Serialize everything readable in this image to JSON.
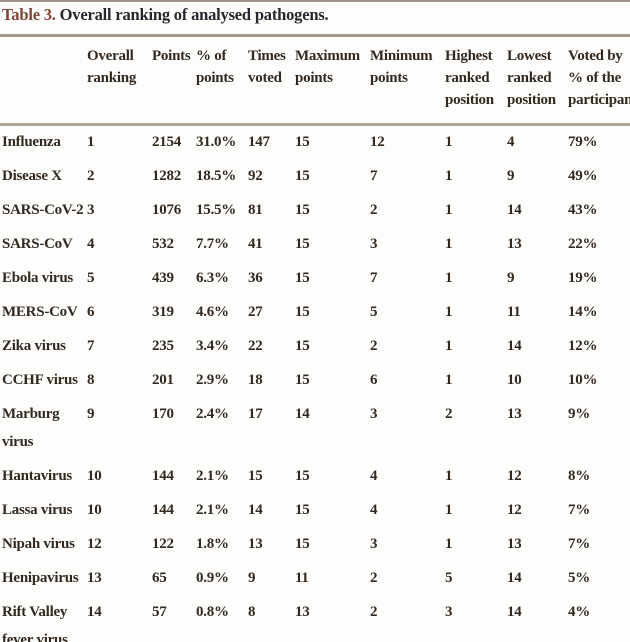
{
  "caption": {
    "label": "Table 3.",
    "text": " Overall ranking of analysed pathogens."
  },
  "table": {
    "columns": [
      {
        "key": "pathogen",
        "header": []
      },
      {
        "key": "overall_ranking",
        "header": [
          "Overall",
          "ranking"
        ]
      },
      {
        "key": "points",
        "header": [
          "Points"
        ]
      },
      {
        "key": "pct_of_points",
        "header": [
          "% of",
          "points"
        ]
      },
      {
        "key": "times_voted",
        "header": [
          "Times",
          "voted"
        ]
      },
      {
        "key": "maximum_points",
        "header": [
          "Maximum",
          "points"
        ]
      },
      {
        "key": "minimum_points",
        "header": [
          "Minimum",
          "points"
        ]
      },
      {
        "key": "highest_ranked_position",
        "header": [
          "Highest",
          "ranked",
          "position"
        ]
      },
      {
        "key": "lowest_ranked_position",
        "header": [
          "Lowest",
          "ranked",
          "position"
        ]
      },
      {
        "key": "voted_by_pct",
        "header": [
          "Voted by",
          "% of the",
          "participants"
        ]
      }
    ],
    "rows": [
      {
        "pathogen": [
          "Influenza"
        ],
        "values": [
          "1",
          "2154",
          "31.0%",
          "147",
          "15",
          "12",
          "1",
          "4",
          "79%"
        ]
      },
      {
        "pathogen": [
          "Disease X"
        ],
        "values": [
          "2",
          "1282",
          "18.5%",
          "92",
          "15",
          "7",
          "1",
          "9",
          "49%"
        ]
      },
      {
        "pathogen": [
          "SARS-CoV-2"
        ],
        "values": [
          "3",
          "1076",
          "15.5%",
          "81",
          "15",
          "2",
          "1",
          "14",
          "43%"
        ]
      },
      {
        "pathogen": [
          "SARS-CoV"
        ],
        "values": [
          "4",
          "532",
          "7.7%",
          "41",
          "15",
          "3",
          "1",
          "13",
          "22%"
        ]
      },
      {
        "pathogen": [
          "Ebola virus"
        ],
        "values": [
          "5",
          "439",
          "6.3%",
          "36",
          "15",
          "7",
          "1",
          "9",
          "19%"
        ]
      },
      {
        "pathogen": [
          "MERS-CoV"
        ],
        "values": [
          "6",
          "319",
          "4.6%",
          "27",
          "15",
          "5",
          "1",
          "11",
          "14%"
        ]
      },
      {
        "pathogen": [
          "Zika virus"
        ],
        "values": [
          "7",
          "235",
          "3.4%",
          "22",
          "15",
          "2",
          "1",
          "14",
          "12%"
        ]
      },
      {
        "pathogen": [
          "CCHF virus"
        ],
        "values": [
          "8",
          "201",
          "2.9%",
          "18",
          "15",
          "6",
          "1",
          "10",
          "10%"
        ]
      },
      {
        "pathogen": [
          "Marburg",
          "virus"
        ],
        "values": [
          "9",
          "170",
          "2.4%",
          "17",
          "14",
          "3",
          "2",
          "13",
          "9%"
        ]
      },
      {
        "pathogen": [
          "Hantavirus"
        ],
        "values": [
          "10",
          "144",
          "2.1%",
          "15",
          "15",
          "4",
          "1",
          "12",
          "8%"
        ]
      },
      {
        "pathogen": [
          "Lassa virus"
        ],
        "values": [
          "10",
          "144",
          "2.1%",
          "14",
          "15",
          "4",
          "1",
          "12",
          "7%"
        ]
      },
      {
        "pathogen": [
          "Nipah virus"
        ],
        "values": [
          "12",
          "122",
          "1.8%",
          "13",
          "15",
          "3",
          "1",
          "13",
          "7%"
        ]
      },
      {
        "pathogen": [
          "Henipavirus"
        ],
        "values": [
          "13",
          "65",
          "0.9%",
          "9",
          "11",
          "2",
          "5",
          "14",
          "5%"
        ]
      },
      {
        "pathogen": [
          "Rift Valley",
          "fever virus"
        ],
        "values": [
          "14",
          "57",
          "0.8%",
          "8",
          "13",
          "2",
          "3",
          "14",
          "4%"
        ]
      }
    ]
  },
  "colors": {
    "caption_label": "#7d4636",
    "caption_text": "#27272f",
    "body_text": "#33291f",
    "rule": "#a89a86",
    "background": "#fdfdfb"
  }
}
